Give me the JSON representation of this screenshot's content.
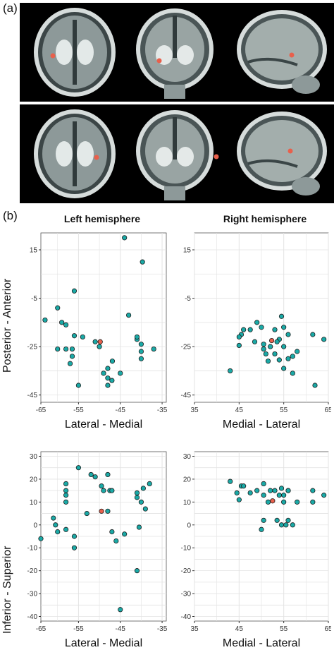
{
  "panel_a_label": "(a)",
  "panel_b_label": "(b)",
  "column_titles": [
    "Left hemisphere",
    "Right hemisphere"
  ],
  "row_ylabels": [
    "Posterior - Anterior",
    "Inferior - Superior"
  ],
  "colors": {
    "point_fill": "#1aa9a6",
    "highlight_fill": "#e8604c",
    "point_edge": "#1c1c1c",
    "grid": "#e3e3e3"
  },
  "chart_data": [
    {
      "type": "scatter",
      "panel": "left-axial",
      "xlabel": "Lateral - Medial",
      "ylabel": "Posterior - Anterior",
      "xlim": [
        -64,
        -34
      ],
      "ylim": [
        -48,
        22
      ],
      "xticks": [
        -65,
        -55,
        -45,
        -35
      ],
      "yticks": [
        15,
        -5,
        -25,
        -45
      ],
      "series": [
        {
          "x": [
            -60.0,
            -59.0,
            -56.0,
            -56.0,
            -58.0,
            -63.0,
            -60.0,
            -56.5,
            -55.0,
            -44.0,
            -39.7,
            -43.0,
            -48.0,
            -48.0,
            -46.9,
            -41.0,
            -49.0,
            -50.0,
            -51.0,
            -48.0,
            -47.0,
            -45.0,
            -40.0,
            -40.0,
            -41.0,
            -37.0,
            -54.0,
            -58.0,
            -56.5,
            -57.0,
            -40.0
          ],
          "y": [
            -9.0,
            -15.0,
            -2.0,
            -20.5,
            -16.0,
            -14.0,
            -26.0,
            -26.0,
            -41.0,
            20.0,
            10.0,
            -12.0,
            -34.0,
            -41.0,
            -31.0,
            -22.0,
            -36.0,
            -25.0,
            -23.0,
            -38.0,
            -39.0,
            -36.0,
            -27.0,
            -30.0,
            -21.0,
            -26.0,
            -21.0,
            -26.0,
            -29.0,
            -32.0,
            -24.0
          ]
        },
        {
          "x": [
            -49.8
          ],
          "y": [
            -23.0
          ]
        }
      ]
    },
    {
      "type": "scatter",
      "panel": "right-axial",
      "xlabel": "Medial - Lateral",
      "ylabel": "",
      "xlim": [
        35,
        65
      ],
      "ylim": [
        -48,
        22
      ],
      "xticks": [
        35,
        45,
        55,
        65
      ],
      "yticks": [
        15,
        -5,
        -25,
        -45
      ],
      "series": [
        {
          "x": [
            43.0,
            45.0,
            45.5,
            46.0,
            45.0,
            47.5,
            49.0,
            50.0,
            48.5,
            50.5,
            51.0,
            52.0,
            53.0,
            54.5,
            55.0,
            54.0,
            55.0,
            53.0,
            54.0,
            56.0,
            55.0,
            57.0,
            56.0,
            53.5,
            57.0,
            58.0,
            61.5,
            64.0,
            62.0,
            51.5,
            50.5
          ],
          "y": [
            -35.0,
            -24.5,
            -20.0,
            -18.0,
            -21.0,
            -18.0,
            -15.0,
            -17.0,
            -23.0,
            -26.0,
            -28.0,
            -25.0,
            -18.0,
            -12.5,
            -17.0,
            -22.0,
            -25.0,
            -28.0,
            -30.5,
            -30.0,
            -34.0,
            -36.0,
            -20.0,
            -23.0,
            -29.0,
            -27.0,
            -20.0,
            -22.0,
            -41.0,
            -31.0,
            -24.0
          ]
        },
        {
          "x": [
            52.3
          ],
          "y": [
            -22.5
          ]
        }
      ]
    },
    {
      "type": "scatter",
      "panel": "left-coronal",
      "xlabel": "Lateral - Medial",
      "ylabel": "Inferior - Superior",
      "xlim": [
        -64,
        -34
      ],
      "ylim": [
        -42,
        32
      ],
      "xticks": [
        -65,
        -55,
        -45,
        -35
      ],
      "yticks": [
        30,
        20,
        10,
        0,
        -10,
        -20,
        -30,
        -40
      ],
      "series": [
        {
          "x": [
            -58.0,
            -58.0,
            -58.0,
            -58.0,
            -61.0,
            -60.5,
            -64.0,
            -60.0,
            -58.0,
            -55.0,
            -56.0,
            -56.0,
            -52.0,
            -51.0,
            -49.5,
            -48.0,
            -47.5,
            -47.0,
            -49.0,
            -48.0,
            -46.0,
            -41.0,
            -41.0,
            -40.0,
            -38.0,
            -39.5,
            -39.0,
            -40.5,
            -44.0,
            -53.0,
            -47.0,
            -41.0,
            -45.0
          ],
          "y": [
            18.0,
            15.0,
            13.0,
            10.0,
            3.0,
            0.0,
            -6.0,
            -3.0,
            -2.0,
            25.0,
            -5.0,
            -10.0,
            22.0,
            21.0,
            17.0,
            22.0,
            15.0,
            15.0,
            15.0,
            6.0,
            -7.0,
            14.0,
            12.0,
            10.0,
            18.0,
            16.0,
            7.0,
            -1.0,
            -4.0,
            5.0,
            -3.0,
            -20.0,
            -37.0
          ]
        },
        {
          "x": [
            -49.5
          ],
          "y": [
            6.0
          ]
        }
      ]
    },
    {
      "type": "scatter",
      "panel": "right-coronal",
      "xlabel": "Medial - Lateral",
      "ylabel": "",
      "xlim": [
        35,
        65
      ],
      "ylim": [
        -42,
        32
      ],
      "xticks": [
        35,
        45,
        55,
        65
      ],
      "yticks": [
        30,
        20,
        10,
        0,
        -10,
        -20,
        -30,
        -40
      ],
      "series": [
        {
          "x": [
            43.0,
            44.5,
            45.5,
            46.0,
            45.0,
            47.5,
            49.0,
            50.5,
            50.5,
            52.0,
            53.0,
            54.0,
            55.0,
            55.0,
            56.0,
            54.5,
            56.0,
            58.0,
            61.5,
            61.5,
            64.0,
            50.0,
            50.5,
            53.5,
            54.5,
            55.5,
            56.0,
            57.0,
            51.5
          ],
          "y": [
            19.0,
            14.0,
            17.0,
            17.0,
            11.0,
            14.0,
            15.0,
            18.0,
            13.0,
            15.0,
            15.0,
            13.0,
            13.0,
            10.0,
            15.0,
            16.0,
            15.0,
            10.0,
            15.0,
            10.0,
            13.0,
            -2.0,
            2.0,
            2.0,
            0.0,
            0.0,
            2.0,
            0.0,
            10.0
          ]
        },
        {
          "x": [
            52.5
          ],
          "y": [
            10.5
          ]
        }
      ]
    }
  ]
}
